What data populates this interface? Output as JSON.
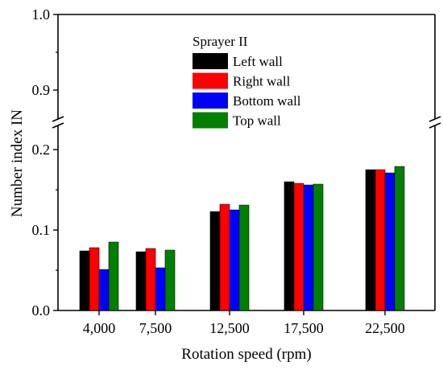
{
  "chart_data": {
    "type": "bar",
    "xlabel": "Rotation speed (rpm)",
    "ylabel": "Number index IN",
    "categories": [
      "4,000",
      "7,500",
      "12,500",
      "17,500",
      "22,500"
    ],
    "legend": {
      "title": "Sprayer II",
      "placement": "top-center"
    },
    "series": [
      {
        "name": "Left wall",
        "color": "#000000",
        "values": [
          0.074,
          0.073,
          0.123,
          0.16,
          0.175
        ]
      },
      {
        "name": "Right wall",
        "color": "#ff0000",
        "values": [
          0.078,
          0.077,
          0.132,
          0.158,
          0.175
        ]
      },
      {
        "name": "Bottom wall",
        "color": "#0000ff",
        "values": [
          0.051,
          0.053,
          0.125,
          0.156,
          0.171
        ]
      },
      {
        "name": "Top wall",
        "color": "#008000",
        "values": [
          0.085,
          0.075,
          0.131,
          0.157,
          0.179
        ]
      }
    ],
    "y_axis": {
      "broken": true,
      "lower_range": [
        0.0,
        0.2
      ],
      "upper_range": [
        0.9,
        1.0
      ],
      "lower_ticks": [
        "0.0",
        "0.1",
        "0.2"
      ],
      "upper_ticks": [
        "0.9",
        "1.0"
      ]
    },
    "grid": false
  }
}
